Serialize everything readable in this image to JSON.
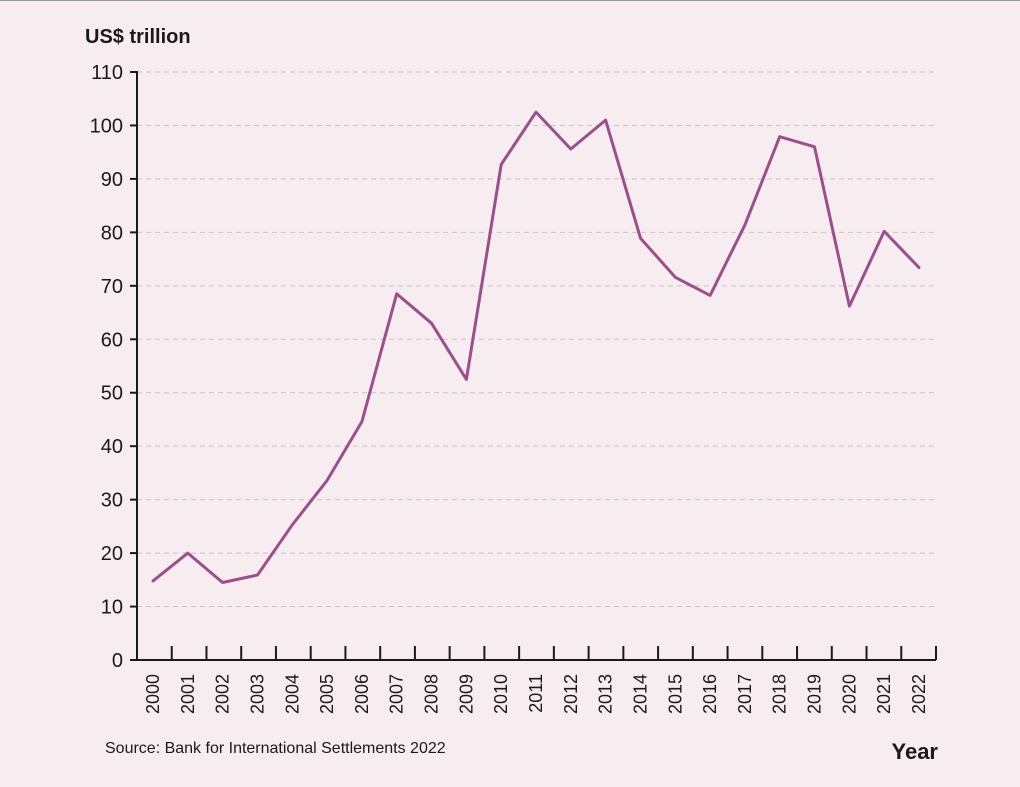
{
  "chart_data": {
    "type": "line",
    "ylabel": "US$ trillion",
    "xlabel": "Year",
    "source": "Source: Bank for International Settlements 2022",
    "ylim": [
      0,
      110
    ],
    "yticks": [
      0,
      10,
      20,
      30,
      40,
      50,
      60,
      70,
      80,
      90,
      100,
      110
    ],
    "grid": true,
    "x": [
      "2000",
      "2001",
      "2002",
      "2003",
      "2004",
      "2005",
      "2006",
      "2007",
      "2008",
      "2009",
      "2010",
      "2011",
      "2012",
      "2013",
      "2014",
      "2015",
      "2016",
      "2017",
      "2018",
      "2019",
      "2020",
      "2021",
      "2022"
    ],
    "series": [
      {
        "color": "#9b4f8c",
        "values": [
          14.8,
          20.0,
          14.5,
          15.9,
          25.3,
          33.6,
          44.6,
          68.5,
          63.0,
          52.5,
          92.7,
          102.5,
          95.6,
          101.0,
          78.9,
          71.6,
          68.2,
          81.4,
          97.9,
          96.0,
          66.2,
          80.2,
          73.4
        ]
      }
    ]
  },
  "colors": {
    "background": "#f7ecef",
    "axis": "#1a1a1a",
    "grid": "#c9c2c6",
    "line": "#9b4f8c"
  }
}
